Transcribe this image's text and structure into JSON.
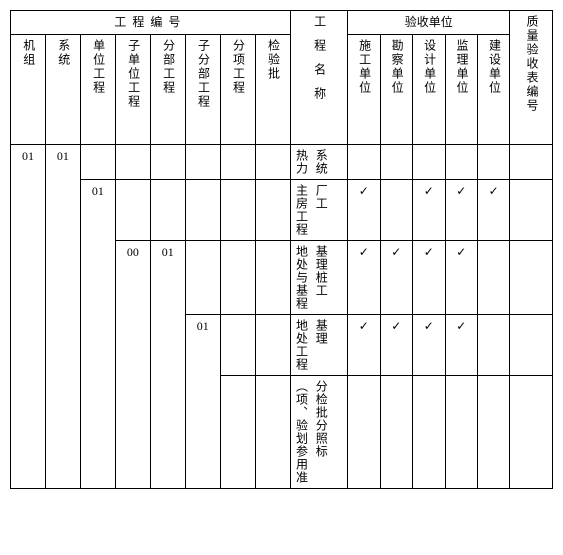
{
  "headers": {
    "group1": "工程编号",
    "group2": "验收单位",
    "group3": "质量验收表编号",
    "cols": {
      "c1": "机组",
      "c2": "系统",
      "c3": "单位工程",
      "c4": "子单位工程",
      "c5": "分部工程",
      "c6": "子分部工程",
      "c7": "分项工程",
      "c8": "检验批",
      "c9": "工程名称",
      "u1": "施工单位",
      "u2": "勘察单位",
      "u3": "设计单位",
      "u4": "监理单位",
      "u5": "建设单位"
    }
  },
  "rows": [
    {
      "c1": "01",
      "c2": "01",
      "c3": "",
      "c4": "",
      "c5": "",
      "c6": "",
      "c7": "",
      "c8": "",
      "name_a": "热力",
      "name_b": "系统",
      "u1": "",
      "u2": "",
      "u3": "",
      "u4": "",
      "u5": "",
      "last": ""
    },
    {
      "c3": "01",
      "c4": "",
      "c5": "",
      "c6": "",
      "c7": "",
      "c8": "",
      "name_a": "主房工程",
      "name_b": "厂工",
      "u1": "✓",
      "u2": "",
      "u3": "✓",
      "u4": "✓",
      "u5": "✓",
      "last": ""
    },
    {
      "c4": "00",
      "c5": "01",
      "c6": "",
      "c7": "",
      "c8": "",
      "name_a": "地处与基程",
      "name_b": "基理桩工",
      "u1": "✓",
      "u2": "✓",
      "u3": "✓",
      "u4": "✓",
      "u5": "",
      "last": ""
    },
    {
      "c6": "01",
      "c7": "",
      "c8": "",
      "name_a": "地处工程",
      "name_b": "基理",
      "u1": "✓",
      "u2": "✓",
      "u3": "✓",
      "u4": "✓",
      "u5": "",
      "last": ""
    },
    {
      "c7": "",
      "c8": "",
      "name_a": "（项、验划参用准",
      "name_b": "分检批分照标",
      "u1": "",
      "u2": "",
      "u3": "",
      "u4": "",
      "u5": "",
      "last": ""
    }
  ],
  "checkmark": "✓",
  "style": {
    "border_color": "#000000",
    "background": "#ffffff",
    "font_family": "SimSun",
    "base_fontsize": 12
  }
}
